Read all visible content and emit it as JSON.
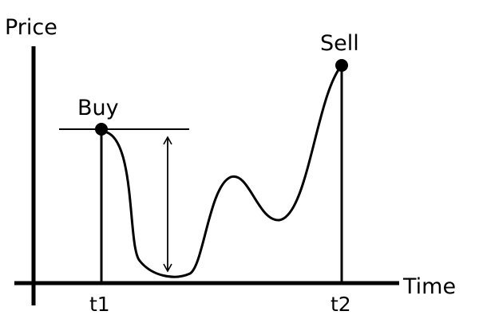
{
  "diagram": {
    "y_axis_label": "Price",
    "x_axis_label": "Time",
    "buy_label": "Buy",
    "sell_label": "Sell",
    "t1_label": "t1",
    "t2_label": "t2",
    "colors": {
      "ink": "#000000",
      "background": "#ffffff"
    },
    "icons": {
      "drawdown": "double-headed-arrow-icon",
      "buy_marker": "filled-circle-icon",
      "sell_marker": "filled-circle-icon"
    }
  }
}
